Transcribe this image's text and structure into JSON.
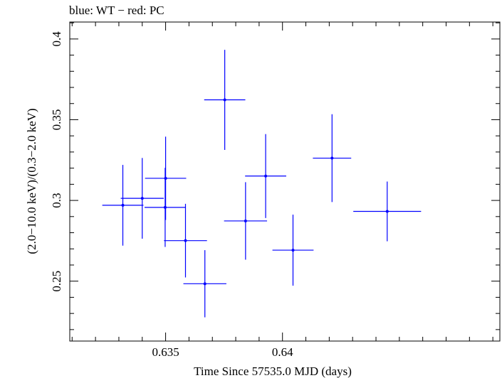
{
  "chart_data": {
    "type": "scatter",
    "title": "blue: WT − red: PC",
    "xlabel": "Time Since 57535.0 MJD (days)",
    "ylabel": "(2.0−10.0 keV)/(0.3−2.0 keV)",
    "xlim": [
      0.6309,
      0.6493
    ],
    "ylim": [
      0.2129,
      0.4105
    ],
    "x_ticks": [
      0.635,
      0.64
    ],
    "x_tick_labels": [
      "0.635",
      "0.64"
    ],
    "y_ticks": [
      0.25,
      0.3,
      0.35,
      0.4
    ],
    "y_tick_labels": [
      "0.25",
      "0.3",
      "0.35",
      "0.4"
    ],
    "x_minor_step": 0.001,
    "y_minor_step": 0.01,
    "grid": false,
    "series": [
      {
        "color": "#0000ff",
        "points": [
          {
            "x": 0.63317,
            "xerr": 0.00088,
            "y": 0.297,
            "yerr": 0.025
          },
          {
            "x": 0.634,
            "xerr": 0.00092,
            "y": 0.3013,
            "yerr": 0.025
          },
          {
            "x": 0.63498,
            "xerr": 0.00088,
            "y": 0.2957,
            "yerr": 0.0245
          },
          {
            "x": 0.635,
            "xerr": 0.00088,
            "y": 0.3137,
            "yerr": 0.0258
          },
          {
            "x": 0.63585,
            "xerr": 0.00092,
            "y": 0.2751,
            "yerr": 0.0228
          },
          {
            "x": 0.63668,
            "xerr": 0.00092,
            "y": 0.2484,
            "yerr": 0.0208
          },
          {
            "x": 0.63753,
            "xerr": 0.00088,
            "y": 0.3623,
            "yerr": 0.031
          },
          {
            "x": 0.63842,
            "xerr": 0.00092,
            "y": 0.2873,
            "yerr": 0.024
          },
          {
            "x": 0.63928,
            "xerr": 0.00088,
            "y": 0.3151,
            "yerr": 0.026
          },
          {
            "x": 0.64045,
            "xerr": 0.00088,
            "y": 0.2692,
            "yerr": 0.022
          },
          {
            "x": 0.64212,
            "xerr": 0.00082,
            "y": 0.3262,
            "yerr": 0.0272
          },
          {
            "x": 0.64448,
            "xerr": 0.00145,
            "y": 0.2932,
            "yerr": 0.0185
          }
        ]
      }
    ]
  }
}
